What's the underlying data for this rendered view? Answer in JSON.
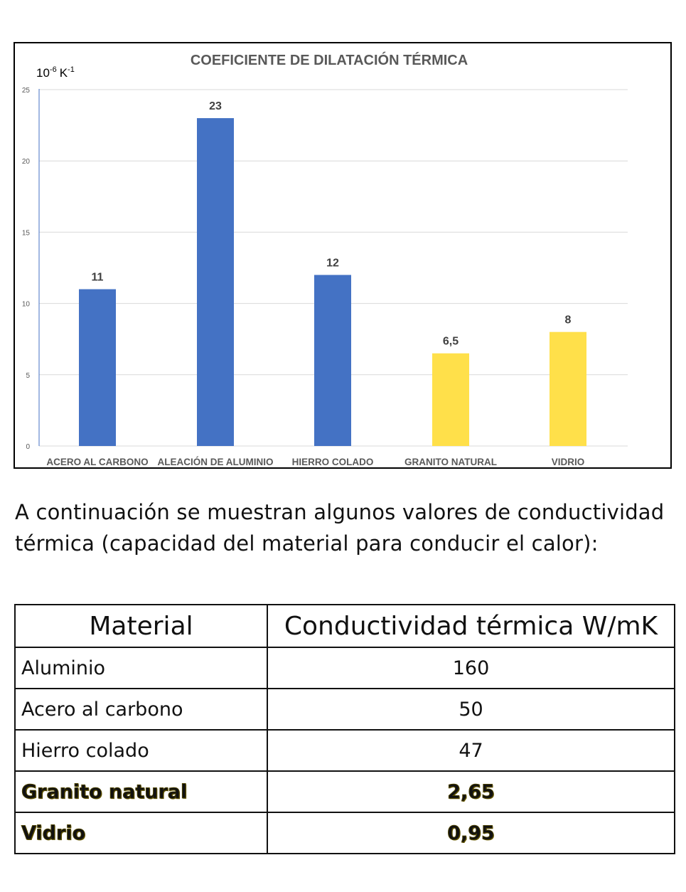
{
  "chart_data": {
    "type": "bar",
    "title": "COEFICIENTE DE DILATACIÓN TÉRMICA",
    "unit_label": {
      "base": "10",
      "exp": "-6",
      "unit": "K",
      "unit_exp": "-1"
    },
    "xlabel": "",
    "ylabel": "10-6 K-1",
    "categories": [
      "ACERO AL CARBONO",
      "ALEACIÓN DE ALUMINIO",
      "HIERRO COLADO",
      "GRANITO NATURAL",
      "VIDRIO"
    ],
    "values": [
      11,
      23,
      12,
      6.5,
      8
    ],
    "value_labels": [
      "11",
      "23",
      "12",
      "6,5",
      "8"
    ],
    "bar_colors": [
      "#4472c4",
      "#4472c4",
      "#4472c4",
      "#ffe04a",
      "#ffe04a"
    ],
    "ylim": [
      0,
      25
    ],
    "yticks": [
      0,
      5,
      10,
      15,
      20,
      25
    ],
    "grid": true,
    "legend": "none"
  },
  "paragraph": "A continuación se muestran algunos valores de conductividad térmica (capacidad del material para conducir el calor):",
  "table": {
    "headers": [
      "Material",
      "Conductividad térmica W/mK"
    ],
    "rows": [
      {
        "material": "Aluminio",
        "value": "160",
        "highlight": false
      },
      {
        "material": "Acero al carbono",
        "value": "50",
        "highlight": false
      },
      {
        "material": "Hierro colado",
        "value": "47",
        "highlight": false
      },
      {
        "material": "Granito natural",
        "value": "2,65",
        "highlight": true
      },
      {
        "material": "Vidrio",
        "value": "0,95",
        "highlight": true
      }
    ],
    "highlight_color": "#f7df3a"
  }
}
